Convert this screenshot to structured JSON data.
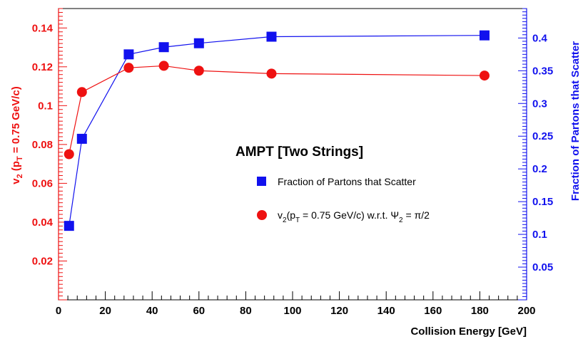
{
  "chart_data": {
    "type": "line",
    "annotation": "AMPT  [Two Strings]",
    "xlabel": "Collision Energy [GeV]",
    "xlim": [
      0,
      200
    ],
    "x_ticks": [
      "0",
      "20",
      "40",
      "60",
      "80",
      "100",
      "120",
      "140",
      "160",
      "180",
      "200"
    ],
    "left_axis": {
      "label_parts": [
        "v",
        "2",
        " (p",
        "T",
        " = 0.75 GeV/c)"
      ],
      "ylim": [
        0,
        0.15
      ],
      "ticks": [
        "0.02",
        "0.04",
        "0.06",
        "0.08",
        "0.1",
        "0.12",
        "0.14"
      ],
      "color": "#ee1111"
    },
    "right_axis": {
      "label": "Fraction of Partons that Scatter",
      "ylim": [
        0,
        0.445
      ],
      "ticks": [
        "0.05",
        "0.1",
        "0.15",
        "0.2",
        "0.25",
        "0.3",
        "0.35",
        "0.4"
      ],
      "color": "#1111ee"
    },
    "series": [
      {
        "axis": "right",
        "marker": "square",
        "color": "#1111ee",
        "legend": "Fraction of Partons that Scatter",
        "x": [
          4.5,
          10,
          30,
          45,
          60,
          91,
          182
        ],
        "y": [
          0.113,
          0.246,
          0.375,
          0.386,
          0.392,
          0.402,
          0.404
        ]
      },
      {
        "axis": "left",
        "marker": "circle",
        "color": "#ee1111",
        "legend_parts": [
          "v",
          "2",
          "(p",
          "T",
          " = 0.75 GeV/c) w.r.t. Ψ",
          "2",
          " = π/2"
        ],
        "x": [
          4.5,
          10,
          30,
          45,
          60,
          91,
          182
        ],
        "y": [
          0.075,
          0.107,
          0.1195,
          0.1205,
          0.118,
          0.1165,
          0.1155
        ]
      }
    ]
  }
}
